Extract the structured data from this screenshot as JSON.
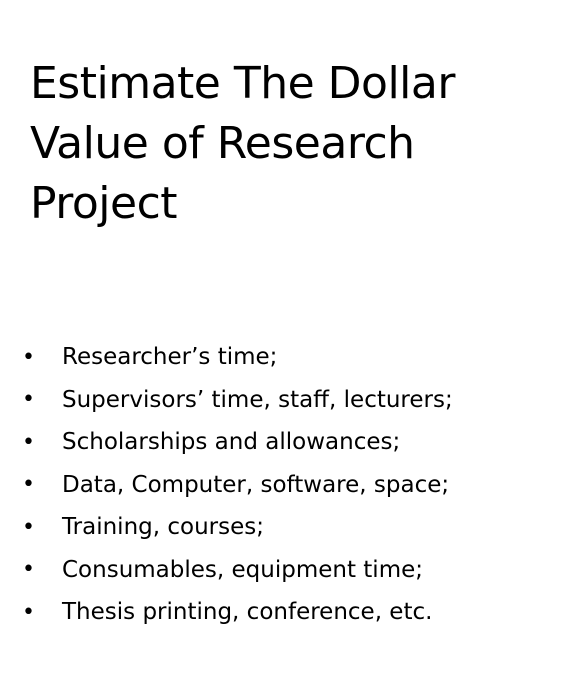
{
  "slide": {
    "title": "Estimate The Dollar\nValue of Research\nProject",
    "bullet_symbol": "•",
    "items": [
      {
        "text": "Researcher’s time;"
      },
      {
        "text": "Supervisors’ time, staff, lecturers;"
      },
      {
        "text": "Scholarships and allowances;"
      },
      {
        "text": "Data, Computer, software, space;"
      },
      {
        "text": "Training, courses;"
      },
      {
        "text": "Consumables, equipment time;"
      },
      {
        "text": "Thesis printing, conference, etc."
      }
    ]
  }
}
